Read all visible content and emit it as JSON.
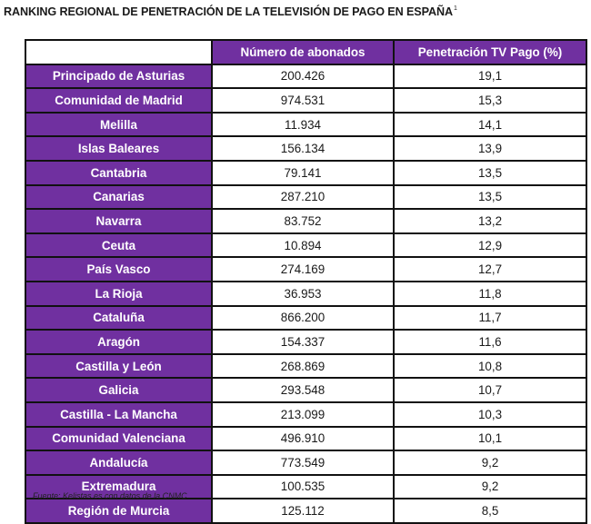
{
  "title": {
    "text": "RANKING REGIONAL DE PENETRACIÓN DE LA TELEVISIÓN DE PAGO EN ESPAÑA",
    "footnote_mark": "1"
  },
  "table": {
    "headers": [
      "",
      "Número de abonados",
      "Penetración TV Pago (%)"
    ],
    "rows": [
      {
        "region": "Principado de Asturias",
        "abonados": "200.426",
        "penetracion": "19,1"
      },
      {
        "region": "Comunidad de Madrid",
        "abonados": "974.531",
        "penetracion": "15,3"
      },
      {
        "region": "Melilla",
        "abonados": "11.934",
        "penetracion": "14,1"
      },
      {
        "region": "Islas Baleares",
        "abonados": "156.134",
        "penetracion": "13,9"
      },
      {
        "region": "Cantabria",
        "abonados": "79.141",
        "penetracion": "13,5"
      },
      {
        "region": "Canarias",
        "abonados": "287.210",
        "penetracion": "13,5"
      },
      {
        "region": "Navarra",
        "abonados": "83.752",
        "penetracion": "13,2"
      },
      {
        "region": "Ceuta",
        "abonados": "10.894",
        "penetracion": "12,9"
      },
      {
        "region": "País Vasco",
        "abonados": "274.169",
        "penetracion": "12,7"
      },
      {
        "region": "La Rioja",
        "abonados": "36.953",
        "penetracion": "11,8"
      },
      {
        "region": "Cataluña",
        "abonados": "866.200",
        "penetracion": "11,7"
      },
      {
        "region": "Aragón",
        "abonados": "154.337",
        "penetracion": "11,6"
      },
      {
        "region": "Castilla y León",
        "abonados": "268.869",
        "penetracion": "10,8"
      },
      {
        "region": "Galicia",
        "abonados": "293.548",
        "penetracion": "10,7"
      },
      {
        "region": "Castilla - La Mancha",
        "abonados": "213.099",
        "penetracion": "10,3"
      },
      {
        "region": "Comunidad Valenciana",
        "abonados": "496.910",
        "penetracion": "10,1"
      },
      {
        "region": "Andalucía",
        "abonados": "773.549",
        "penetracion": "9,2"
      },
      {
        "region": "Extremadura",
        "abonados": "100.535",
        "penetracion": "9,2"
      },
      {
        "region": "Región de Murcia",
        "abonados": "125.112",
        "penetracion": "8,5"
      }
    ]
  },
  "source": "Fuente: Kelistas.es con datos de la CNMC",
  "colors": {
    "header_bg": "#7030a0",
    "header_text": "#ffffff",
    "border": "#111111"
  }
}
